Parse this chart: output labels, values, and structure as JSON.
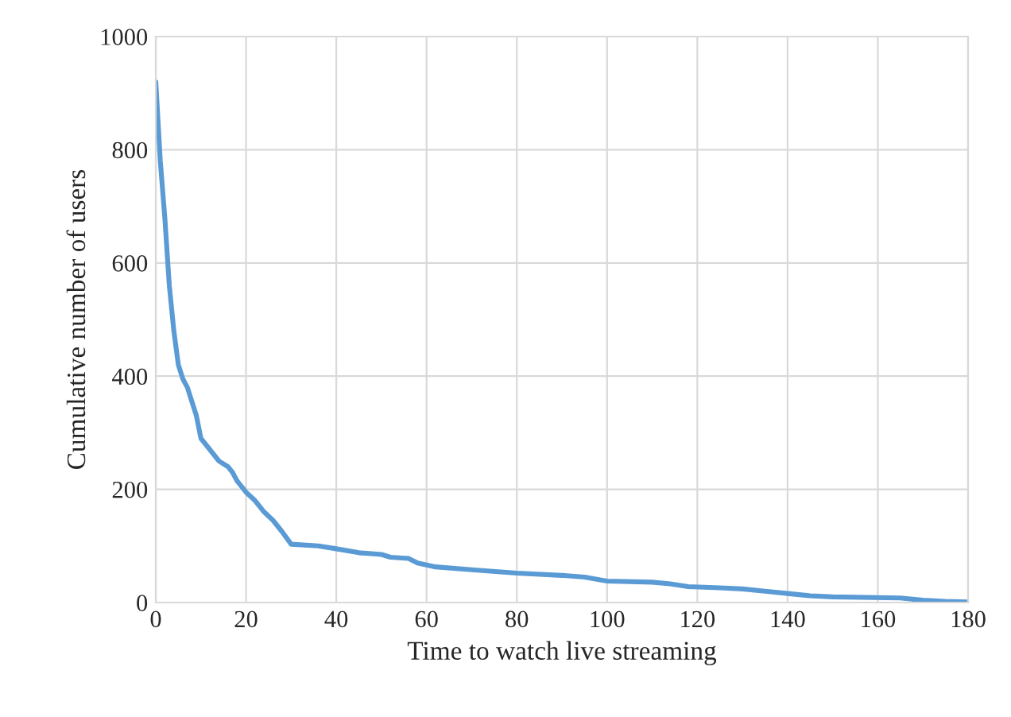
{
  "chart_data": {
    "type": "line",
    "xlabel": "Time to watch live streaming",
    "ylabel": "Cumulative number of users",
    "x": [
      0,
      1,
      2,
      3,
      4,
      5,
      6,
      7,
      8,
      9,
      10,
      12,
      14,
      16,
      17,
      18,
      20,
      22,
      24,
      26,
      28,
      30,
      36,
      40,
      45,
      50,
      52,
      56,
      58,
      62,
      70,
      80,
      90,
      95,
      100,
      110,
      114,
      118,
      125,
      130,
      135,
      140,
      145,
      150,
      165,
      170,
      175,
      180
    ],
    "series": [
      {
        "color": "#5b9bd5",
        "values": [
          920,
          780,
          680,
          560,
          480,
          420,
          395,
          380,
          355,
          330,
          290,
          270,
          250,
          240,
          230,
          215,
          195,
          180,
          160,
          145,
          125,
          103,
          100,
          95,
          88,
          85,
          80,
          78,
          70,
          63,
          58,
          52,
          48,
          45,
          38,
          36,
          33,
          28,
          26,
          24,
          20,
          16,
          12,
          10,
          8,
          4,
          2,
          1
        ]
      }
    ],
    "xlim": [
      0,
      180
    ],
    "xticks": [
      0,
      20,
      40,
      60,
      80,
      100,
      120,
      140,
      160,
      180
    ],
    "ylim": [
      0,
      1000
    ],
    "yticks": [
      0,
      200,
      400,
      600,
      800,
      1000
    ],
    "grid": true,
    "legend": false,
    "marker": "none",
    "line_style": "solid"
  }
}
